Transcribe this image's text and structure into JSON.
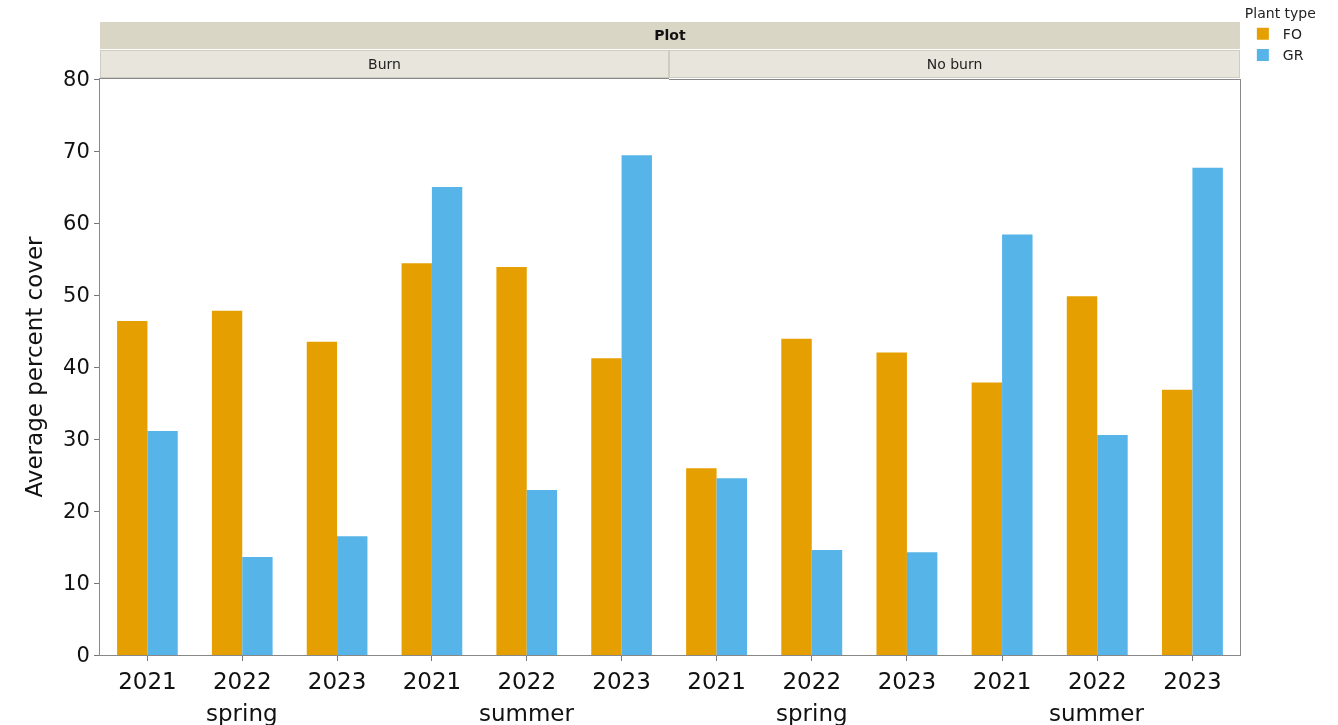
{
  "chart_data": [
    {
      "type": "bar",
      "title": "Burn",
      "subtitle": "Plot",
      "ylabel": "Average percent cover",
      "categories": [
        "2021",
        "2022",
        "2023",
        "2021",
        "2022",
        "2023"
      ],
      "series": [
        {
          "color": "#e69f00",
          "values": [
            46.4,
            47.8,
            43.5,
            54.4,
            53.9,
            41.2
          ]
        },
        {
          "color": "#56b4e9",
          "values": [
            31.1,
            13.6,
            16.5,
            65.0,
            22.9,
            69.4
          ]
        }
      ],
      "annotations": [
        "spring",
        "summer"
      ],
      "ylim": [
        0,
        80
      ],
      "yticks": [
        0,
        10,
        20,
        30,
        40,
        50,
        60,
        70,
        80
      ],
      "grid": false,
      "legend": false
    },
    {
      "type": "bar",
      "title": "No burn",
      "legend_title": "Plant type",
      "categories": [
        "2021",
        "2022",
        "2023",
        "2021",
        "2022",
        "2023"
      ],
      "series": [
        {
          "name": "FO",
          "color": "#e69f00",
          "values": [
            26.0,
            44.0,
            42.1,
            37.9,
            49.9,
            36.9
          ]
        },
        {
          "name": "GR",
          "color": "#56b4e9",
          "values": [
            24.6,
            14.6,
            14.3,
            58.5,
            30.6,
            67.8
          ]
        }
      ],
      "annotations": [
        "spring",
        "summer"
      ],
      "ylim": [
        0,
        80
      ],
      "yticks": [
        0,
        10,
        20,
        30,
        40,
        50,
        60,
        70,
        80
      ],
      "grid": false,
      "legend": "top right",
      "tick_labels": "x"
    }
  ]
}
